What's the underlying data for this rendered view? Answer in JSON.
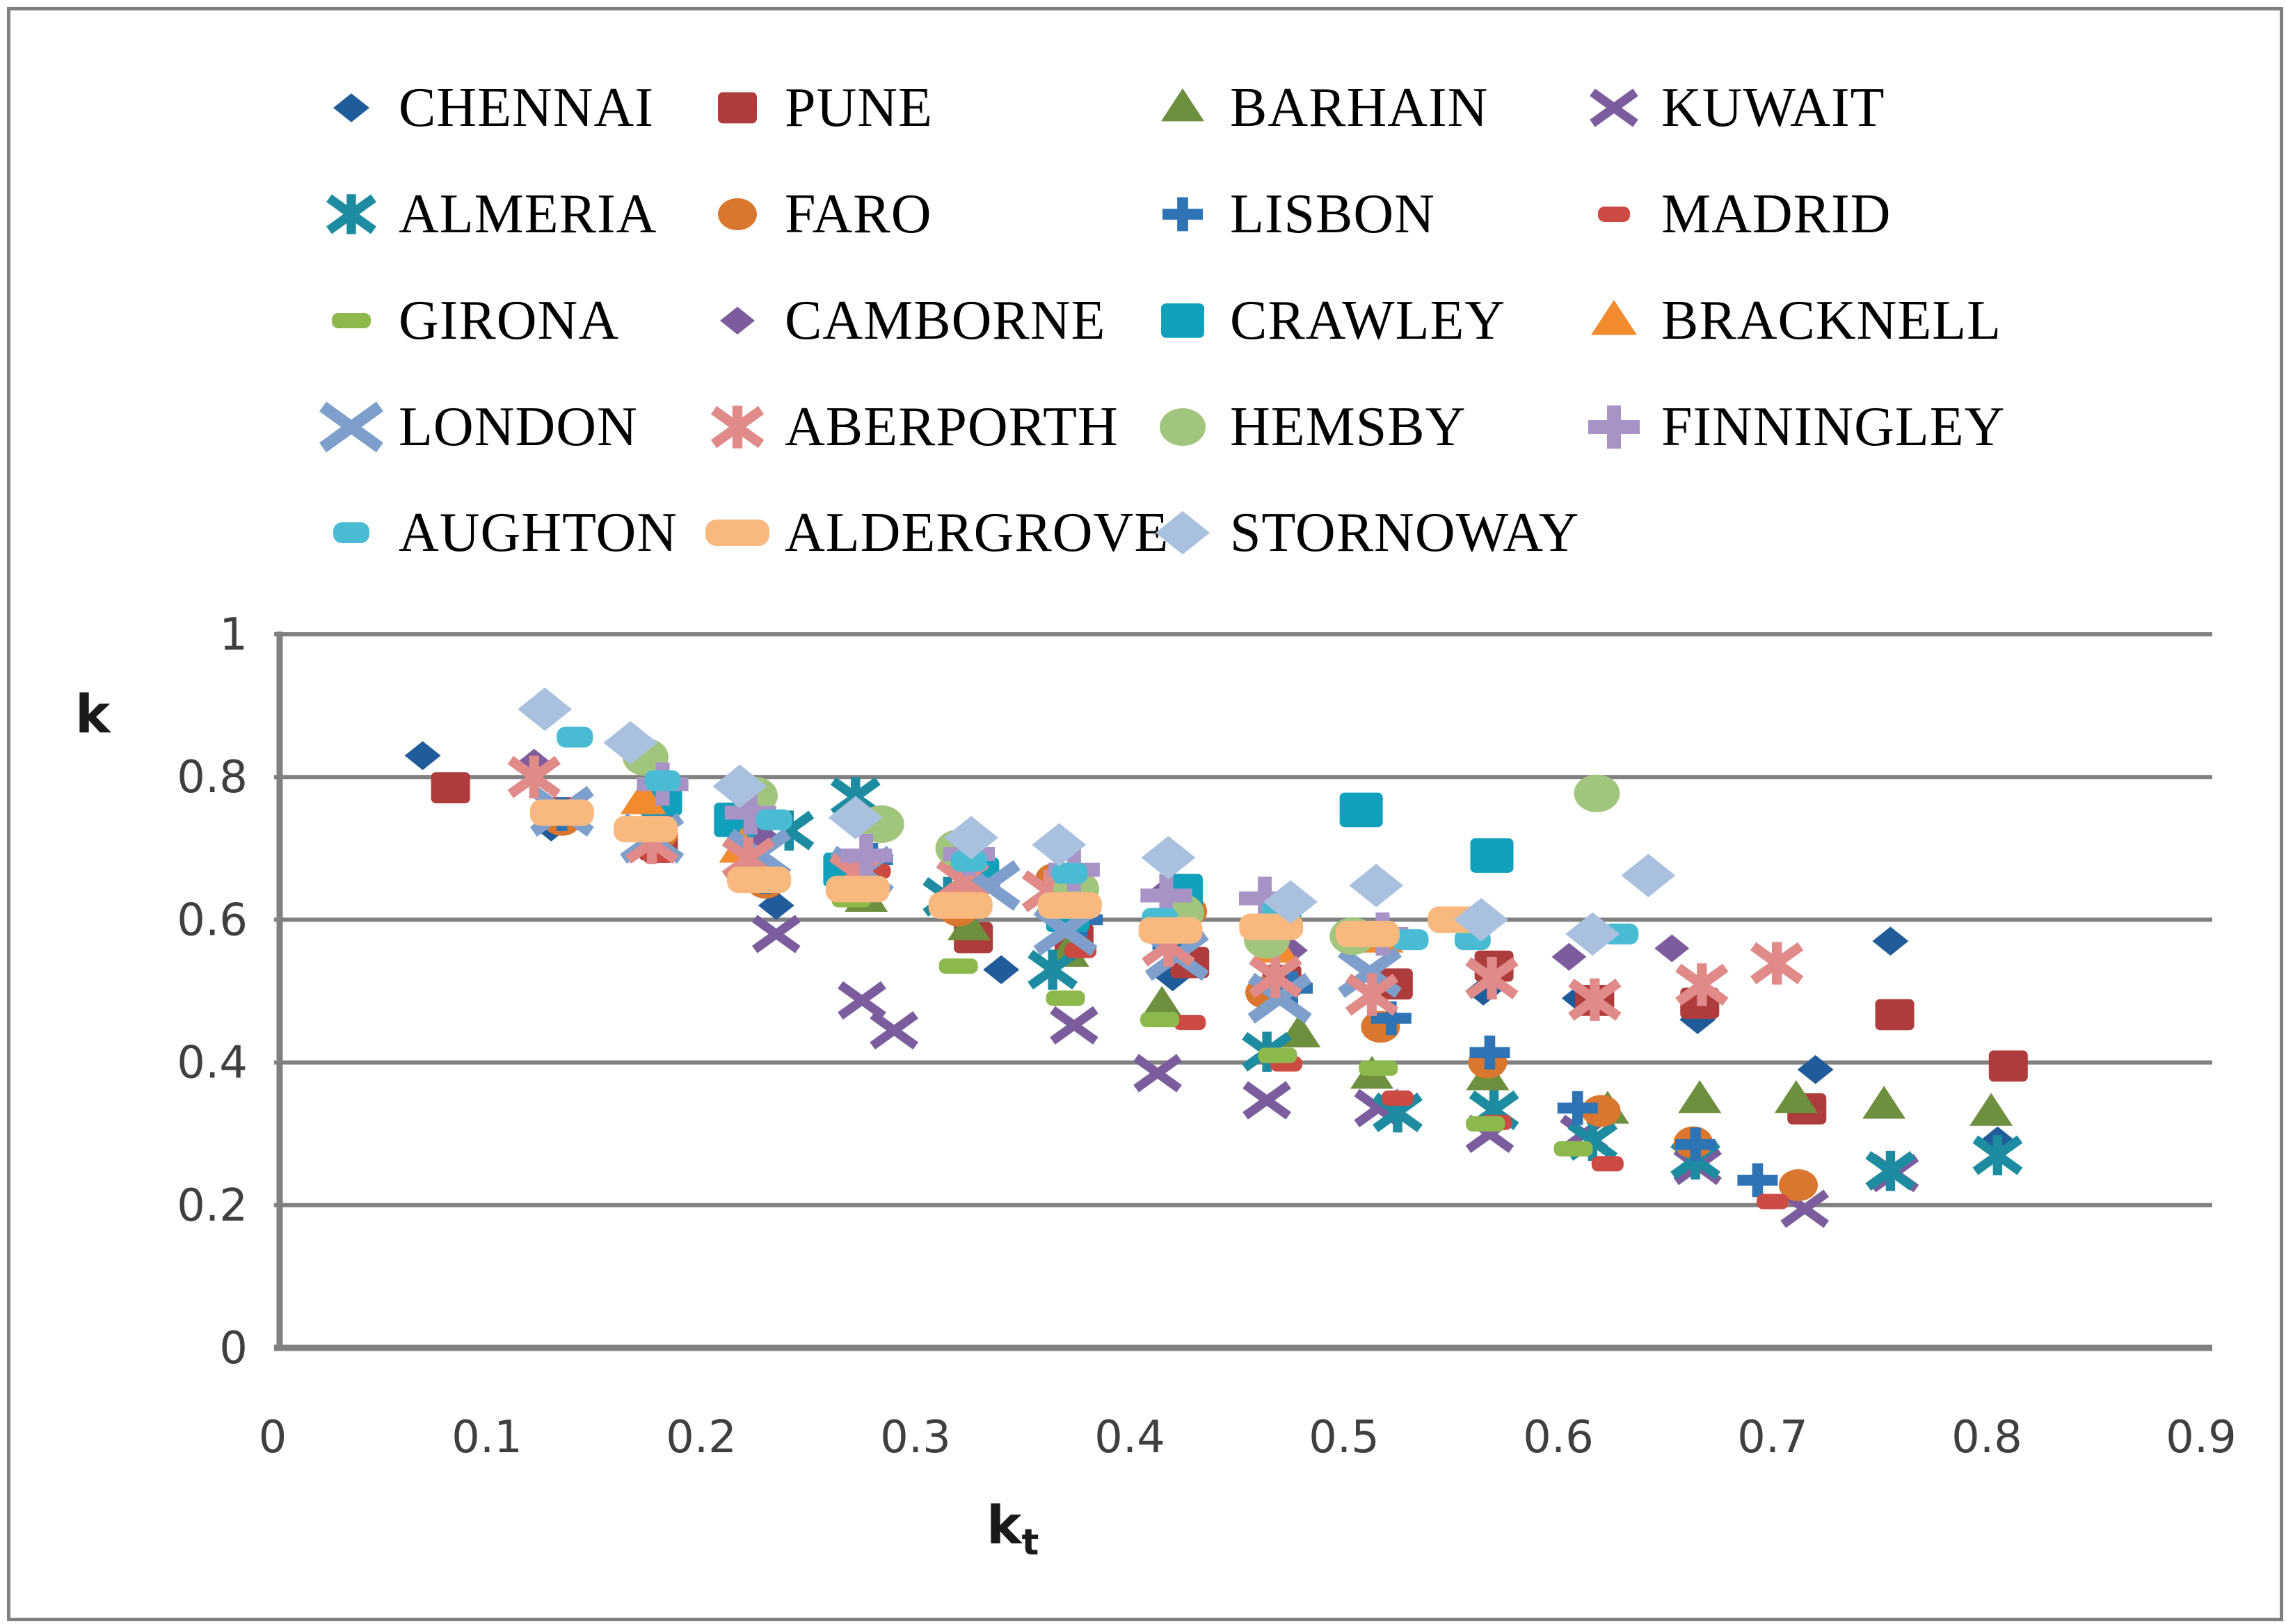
{
  "figure": {
    "background": "#ffffff",
    "border_color": "#7f7f7f",
    "grid_color": "#808080",
    "tick_text_color": "#3f3f3f"
  },
  "chart_data": {
    "type": "scatter",
    "title": "",
    "xlabel_base": "k",
    "xlabel_sub": "t",
    "ylabel": "k",
    "xlim": [
      0,
      0.9
    ],
    "ylim": [
      0,
      1
    ],
    "grid": "horizontal",
    "legend_position": "top",
    "legend_columns": 4,
    "xticks": {
      "values": [
        0,
        0.1,
        0.2,
        0.3,
        0.4,
        0.5,
        0.6,
        0.7,
        0.8,
        0.9
      ],
      "labels": [
        "0",
        "0.1",
        "0.2",
        "0.3",
        "0.4",
        "0.5",
        "0.6",
        "0.7",
        "0.8",
        "0.9"
      ]
    },
    "yticks": {
      "values": [
        0,
        0.2,
        0.4,
        0.6,
        0.8,
        1
      ],
      "labels": [
        "0",
        "0.2",
        "0.4",
        "0.6",
        "0.8",
        "1"
      ]
    },
    "series": [
      {
        "name": "CHENNAI",
        "marker": "diamond",
        "color": "#1f5c99",
        "size": 52,
        "points": [
          [
            0.07,
            0.83
          ],
          [
            0.13,
            0.73
          ],
          [
            0.235,
            0.62
          ],
          [
            0.34,
            0.53
          ],
          [
            0.42,
            0.52
          ],
          [
            0.565,
            0.5
          ],
          [
            0.61,
            0.49
          ],
          [
            0.665,
            0.46
          ],
          [
            0.72,
            0.39
          ],
          [
            0.755,
            0.57
          ],
          [
            0.805,
            0.29
          ]
        ]
      },
      {
        "name": "PUNE",
        "marker": "square",
        "color": "#ae3c3c",
        "size": 56,
        "points": [
          [
            0.083,
            0.785
          ],
          [
            0.137,
            0.75
          ],
          [
            0.18,
            0.705
          ],
          [
            0.327,
            0.575
          ],
          [
            0.374,
            0.573
          ],
          [
            0.428,
            0.54
          ],
          [
            0.471,
            0.515
          ],
          [
            0.523,
            0.51
          ],
          [
            0.57,
            0.535
          ],
          [
            0.617,
            0.487
          ],
          [
            0.666,
            0.483
          ],
          [
            0.716,
            0.335
          ],
          [
            0.757,
            0.467
          ],
          [
            0.81,
            0.395
          ]
        ]
      },
      {
        "name": "BARHAIN",
        "marker": "triangle",
        "color": "#6e8f3e",
        "size": 62,
        "points": [
          [
            0.277,
            0.63
          ],
          [
            0.325,
            0.59
          ],
          [
            0.371,
            0.553
          ],
          [
            0.415,
            0.48
          ],
          [
            0.479,
            0.44
          ],
          [
            0.513,
            0.382
          ],
          [
            0.567,
            0.38
          ],
          [
            0.623,
            0.333
          ],
          [
            0.666,
            0.348
          ],
          [
            0.711,
            0.348
          ],
          [
            0.752,
            0.34
          ],
          [
            0.802,
            0.33
          ]
        ]
      },
      {
        "name": "KUWAIT",
        "marker": "x",
        "color": "#7b5c9c",
        "size": 62,
        "points": [
          [
            0.235,
            0.58
          ],
          [
            0.275,
            0.487
          ],
          [
            0.29,
            0.445
          ],
          [
            0.374,
            0.452
          ],
          [
            0.413,
            0.385
          ],
          [
            0.464,
            0.347
          ],
          [
            0.516,
            0.336
          ],
          [
            0.568,
            0.3
          ],
          [
            0.612,
            0.3
          ],
          [
            0.665,
            0.255
          ],
          [
            0.715,
            0.195
          ],
          [
            0.757,
            0.245
          ]
        ]
      },
      {
        "name": "ALMERIA",
        "marker": "asterisk",
        "color": "#1d8ca0",
        "size": 64,
        "points": [
          [
            0.241,
            0.725
          ],
          [
            0.272,
            0.772
          ],
          [
            0.315,
            0.632
          ],
          [
            0.364,
            0.53
          ],
          [
            0.464,
            0.415
          ],
          [
            0.525,
            0.33
          ],
          [
            0.57,
            0.333
          ],
          [
            0.616,
            0.29
          ],
          [
            0.664,
            0.264
          ],
          [
            0.755,
            0.248
          ],
          [
            0.805,
            0.27
          ]
        ]
      },
      {
        "name": "FARO",
        "marker": "circle",
        "color": "#d9772e",
        "size": 56,
        "points": [
          [
            0.135,
            0.74
          ],
          [
            0.18,
            0.72
          ],
          [
            0.23,
            0.652
          ],
          [
            0.32,
            0.613
          ],
          [
            0.365,
            0.657
          ],
          [
            0.427,
            0.612
          ],
          [
            0.463,
            0.498
          ],
          [
            0.517,
            0.45
          ],
          [
            0.567,
            0.4
          ],
          [
            0.62,
            0.332
          ],
          [
            0.663,
            0.288
          ],
          [
            0.712,
            0.228
          ]
        ]
      },
      {
        "name": "LISBON",
        "marker": "plus",
        "color": "#2e74b5",
        "size": 58,
        "points": [
          [
            0.135,
            0.748
          ],
          [
            0.18,
            0.757
          ],
          [
            0.23,
            0.66
          ],
          [
            0.28,
            0.684
          ],
          [
            0.33,
            0.645
          ],
          [
            0.378,
            0.6
          ],
          [
            0.42,
            0.565
          ],
          [
            0.476,
            0.504
          ],
          [
            0.522,
            0.462
          ],
          [
            0.568,
            0.414
          ],
          [
            0.609,
            0.336
          ],
          [
            0.664,
            0.285
          ],
          [
            0.693,
            0.235
          ]
        ]
      },
      {
        "name": "MADRID",
        "marker": "dash",
        "color": "#cb4a42",
        "size": 46,
        "dash_h": 22,
        "points": [
          [
            0.18,
            0.69
          ],
          [
            0.281,
            0.668
          ],
          [
            0.377,
            0.557
          ],
          [
            0.428,
            0.456
          ],
          [
            0.473,
            0.398
          ],
          [
            0.525,
            0.35
          ],
          [
            0.571,
            0.316
          ],
          [
            0.623,
            0.258
          ],
          [
            0.7,
            0.205
          ]
        ]
      },
      {
        "name": "GIRONA",
        "marker": "dash",
        "color": "#8db94c",
        "size": 56,
        "dash_h": 22,
        "points": [
          [
            0.27,
            0.628
          ],
          [
            0.32,
            0.535
          ],
          [
            0.37,
            0.49
          ],
          [
            0.414,
            0.46
          ],
          [
            0.469,
            0.41
          ],
          [
            0.516,
            0.392
          ],
          [
            0.566,
            0.314
          ],
          [
            0.607,
            0.279
          ]
        ]
      },
      {
        "name": "CAMBORNE",
        "marker": "diamond",
        "color": "#7d5c9e",
        "size": 50,
        "points": [
          [
            0.122,
            0.82
          ],
          [
            0.18,
            0.745
          ],
          [
            0.227,
            0.72
          ],
          [
            0.417,
            0.64
          ],
          [
            0.475,
            0.557
          ],
          [
            0.605,
            0.548
          ],
          [
            0.653,
            0.56
          ]
        ]
      },
      {
        "name": "CRAWLEY",
        "marker": "square",
        "color": "#11a0bc",
        "size": 62,
        "points": [
          [
            0.181,
            0.77
          ],
          [
            0.216,
            0.74
          ],
          [
            0.267,
            0.67
          ],
          [
            0.329,
            0.663
          ],
          [
            0.371,
            0.607
          ],
          [
            0.424,
            0.64
          ],
          [
            0.47,
            0.612
          ],
          [
            0.508,
            0.754
          ],
          [
            0.569,
            0.69
          ]
        ]
      },
      {
        "name": "BRACKNELL",
        "marker": "triangle",
        "color": "#f28a2e",
        "size": 66,
        "points": [
          [
            0.173,
            0.768
          ],
          [
            0.219,
            0.7
          ],
          [
            0.274,
            0.654
          ],
          [
            0.322,
            0.64
          ],
          [
            0.468,
            0.56
          ],
          [
            0.517,
            0.574
          ]
        ]
      },
      {
        "name": "LONDON",
        "marker": "x",
        "color": "#7e9fcc",
        "size": 82,
        "points": [
          [
            0.135,
            0.752
          ],
          [
            0.177,
            0.714
          ],
          [
            0.227,
            0.692
          ],
          [
            0.275,
            0.668
          ],
          [
            0.334,
            0.648
          ],
          [
            0.37,
            0.585
          ],
          [
            0.422,
            0.55
          ],
          [
            0.47,
            0.49
          ],
          [
            0.512,
            0.526
          ]
        ]
      },
      {
        "name": "ABERPORTH",
        "marker": "asterisk",
        "color": "#e08a89",
        "size": 68,
        "points": [
          [
            0.122,
            0.8
          ],
          [
            0.177,
            0.708
          ],
          [
            0.222,
            0.686
          ],
          [
            0.272,
            0.664
          ],
          [
            0.322,
            0.655
          ],
          [
            0.362,
            0.64
          ],
          [
            0.418,
            0.564
          ],
          [
            0.468,
            0.52
          ],
          [
            0.513,
            0.495
          ],
          [
            0.569,
            0.518
          ],
          [
            0.617,
            0.488
          ],
          [
            0.667,
            0.509
          ],
          [
            0.702,
            0.539
          ]
        ]
      },
      {
        "name": "HEMSBY",
        "marker": "circle",
        "color": "#a2c57d",
        "size": 66,
        "points": [
          [
            0.174,
            0.828
          ],
          [
            0.225,
            0.774
          ],
          [
            0.284,
            0.734
          ],
          [
            0.32,
            0.7
          ],
          [
            0.375,
            0.643
          ],
          [
            0.424,
            0.61
          ],
          [
            0.464,
            0.572
          ],
          [
            0.504,
            0.577
          ],
          [
            0.618,
            0.777
          ]
        ]
      },
      {
        "name": "FINNINGLEY",
        "marker": "plus",
        "color": "#a893c6",
        "size": 74,
        "points": [
          [
            0.182,
            0.79
          ],
          [
            0.223,
            0.75
          ],
          [
            0.277,
            0.69
          ],
          [
            0.325,
            0.692
          ],
          [
            0.374,
            0.67
          ],
          [
            0.417,
            0.634
          ],
          [
            0.463,
            0.63
          ],
          [
            0.518,
            0.58
          ]
        ]
      },
      {
        "name": "AUGHTON",
        "marker": "dash",
        "color": "#49bcd4",
        "size": 52,
        "dash_h": 30,
        "points": [
          [
            0.141,
            0.856
          ],
          [
            0.182,
            0.795
          ],
          [
            0.234,
            0.74
          ],
          [
            0.325,
            0.682
          ],
          [
            0.372,
            0.665
          ],
          [
            0.414,
            0.602
          ],
          [
            0.47,
            0.614
          ],
          [
            0.531,
            0.572
          ],
          [
            0.56,
            0.572
          ],
          [
            0.629,
            0.58
          ]
        ]
      },
      {
        "name": "ALDERGROVE",
        "marker": "dash",
        "color": "#f9b97e",
        "size": 92,
        "dash_h": 38,
        "points": [
          [
            0.135,
            0.75
          ],
          [
            0.174,
            0.727
          ],
          [
            0.227,
            0.656
          ],
          [
            0.273,
            0.643
          ],
          [
            0.321,
            0.62
          ],
          [
            0.372,
            0.62
          ],
          [
            0.419,
            0.585
          ],
          [
            0.466,
            0.59
          ],
          [
            0.511,
            0.58
          ],
          [
            0.554,
            0.6
          ]
        ]
      },
      {
        "name": "STORNOWAY",
        "marker": "diamond",
        "color": "#a9c0de",
        "size": 78,
        "points": [
          [
            0.127,
            0.895
          ],
          [
            0.167,
            0.848
          ],
          [
            0.218,
            0.787
          ],
          [
            0.272,
            0.743
          ],
          [
            0.326,
            0.715
          ],
          [
            0.367,
            0.705
          ],
          [
            0.418,
            0.687
          ],
          [
            0.475,
            0.625
          ],
          [
            0.515,
            0.648
          ],
          [
            0.564,
            0.6
          ],
          [
            0.616,
            0.58
          ],
          [
            0.642,
            0.662
          ]
        ]
      }
    ]
  }
}
